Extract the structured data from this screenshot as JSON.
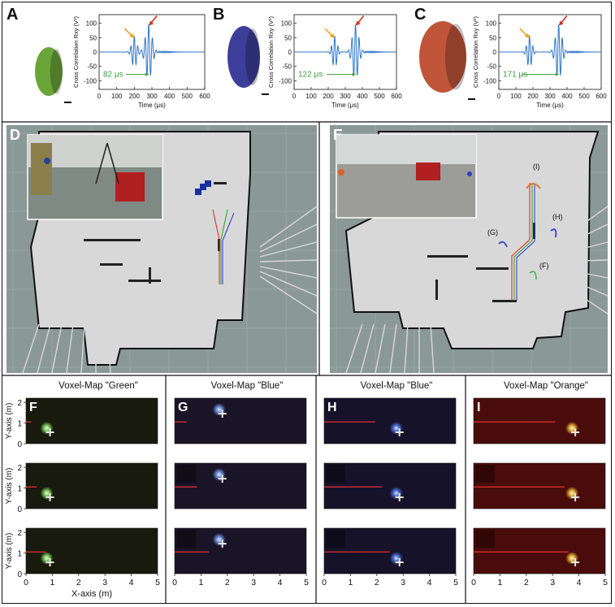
{
  "top_panels": [
    {
      "letter": "A",
      "ylabel": "Cross Correlation Rxy (V²)",
      "xlabel": "Time (μs)",
      "annotation": "82 μs",
      "shell_color": "#6aa53a",
      "primary_peak_us": 200,
      "secondary_peak_us": 282,
      "x_ticks": [
        "0",
        "100",
        "200",
        "300",
        "400",
        "500",
        "600"
      ],
      "y_ticks": [
        "100",
        "50",
        "0",
        "-50",
        "-100"
      ]
    },
    {
      "letter": "B",
      "ylabel": "Cross Correlation Rxy (V²)",
      "xlabel": "Time (μs)",
      "annotation": "122 μs",
      "shell_color": "#3c3e9a",
      "primary_peak_us": 238,
      "secondary_peak_us": 360,
      "x_ticks": [
        "0",
        "100",
        "200",
        "300",
        "400",
        "500",
        "600"
      ],
      "y_ticks": [
        "100",
        "50",
        "0",
        "-50",
        "-100"
      ]
    },
    {
      "letter": "C",
      "ylabel": "Cross Correlation Rxy (V²)",
      "xlabel": "Time (μs)",
      "annotation": "171 μs",
      "shell_color": "#c0553a",
      "primary_peak_us": 180,
      "secondary_peak_us": 351,
      "x_ticks": [
        "0",
        "100",
        "200",
        "300",
        "400",
        "500",
        "600"
      ],
      "y_ticks": [
        "100",
        "50",
        "0",
        "-50",
        "-100"
      ]
    }
  ],
  "map_panels": [
    {
      "letter": "D",
      "labels": []
    },
    {
      "letter": "E",
      "labels": [
        "(I)",
        "(H)",
        "(G)",
        "(F)"
      ]
    }
  ],
  "voxel_panels": [
    {
      "letter": "F",
      "title": "Voxel-Map \"Green\"",
      "blob_color": "#8ef06a",
      "bg": "#171a0c",
      "target_x_m": 0.85,
      "target_y_m": 0.55,
      "line_end_m": [
        0.2,
        0.4,
        0.75
      ]
    },
    {
      "letter": "G",
      "title": "Voxel-Map \"Blue\"",
      "blob_color": "#7fa8ff",
      "bg": "#1a1427",
      "target_x_m": 1.75,
      "target_y_m": 1.45,
      "line_end_m": [
        0.45,
        0.85,
        1.3
      ]
    },
    {
      "letter": "H",
      "title": "Voxel-Map \"Blue\"",
      "blob_color": "#5b86ff",
      "bg": "#16122a",
      "target_x_m": 2.8,
      "target_y_m": 0.55,
      "line_end_m": [
        1.95,
        2.2,
        2.5
      ]
    },
    {
      "letter": "I",
      "title": "Voxel-Map \"Orange\"",
      "blob_color": "#ffd040",
      "bg": "#4a0c0a",
      "target_x_m": 3.8,
      "target_y_m": 0.55,
      "line_end_m": [
        3.1,
        3.45,
        3.6
      ]
    }
  ],
  "voxel_axes": {
    "ylabel": "Y-axis (m)",
    "xlabel": "X-axis (m)",
    "y_ticks": [
      "2",
      "1",
      "0"
    ],
    "x_ticks": [
      "0",
      "1",
      "2",
      "3",
      "4",
      "5"
    ]
  },
  "colors": {
    "signal": "#2f76c8",
    "arrow_orange": "#f0a020",
    "arrow_red": "#d03020",
    "annot_green": "#3ca03c"
  }
}
